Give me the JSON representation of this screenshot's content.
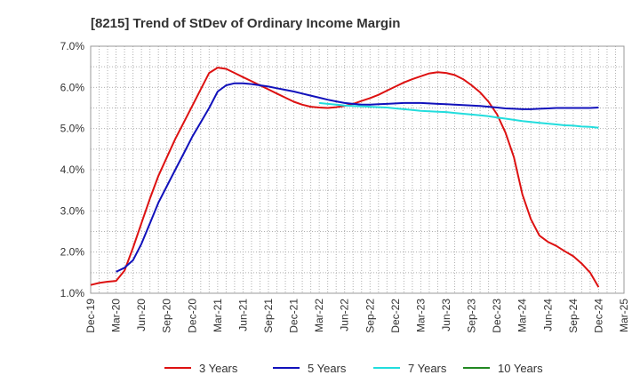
{
  "chart_data": {
    "type": "line",
    "title": "[8215]  Trend of StDev of Ordinary Income Margin",
    "xlabel": "",
    "ylabel": "",
    "x_ticks": [
      "Dec-19",
      "Mar-20",
      "Jun-20",
      "Sep-20",
      "Dec-20",
      "Mar-21",
      "Jun-21",
      "Sep-21",
      "Dec-21",
      "Mar-22",
      "Jun-22",
      "Sep-22",
      "Dec-22",
      "Mar-23",
      "Jun-23",
      "Sep-23",
      "Dec-23",
      "Mar-24",
      "Jun-24",
      "Sep-24",
      "Dec-24",
      "Mar-25"
    ],
    "y_ticks": [
      "1.0%",
      "2.0%",
      "3.0%",
      "4.0%",
      "5.0%",
      "6.0%",
      "7.0%"
    ],
    "ylim": [
      1.0,
      7.0
    ],
    "grid": true,
    "legend_position": "bottom",
    "series": [
      {
        "name": "3 Years",
        "color": "#dd1111",
        "x": [
          "Dec-19",
          "Jan-20",
          "Feb-20",
          "Mar-20",
          "Apr-20",
          "May-20",
          "Jun-20",
          "Jul-20",
          "Aug-20",
          "Sep-20",
          "Oct-20",
          "Nov-20",
          "Dec-20",
          "Jan-21",
          "Feb-21",
          "Mar-21",
          "Apr-21",
          "May-21",
          "Jun-21",
          "Jul-21",
          "Aug-21",
          "Sep-21",
          "Oct-21",
          "Nov-21",
          "Dec-21",
          "Jan-22",
          "Feb-22",
          "Mar-22",
          "Apr-22",
          "May-22",
          "Jun-22",
          "Jul-22",
          "Aug-22",
          "Sep-22",
          "Oct-22",
          "Nov-22",
          "Dec-22",
          "Jan-23",
          "Feb-23",
          "Mar-23",
          "Apr-23",
          "May-23",
          "Jun-23",
          "Jul-23",
          "Aug-23",
          "Sep-23",
          "Oct-23",
          "Nov-23",
          "Dec-23",
          "Jan-24",
          "Feb-24",
          "Mar-24",
          "Apr-24",
          "May-24",
          "Jun-24",
          "Jul-24",
          "Aug-24",
          "Sep-24",
          "Oct-24",
          "Nov-24",
          "Dec-24"
        ],
        "values": [
          1.2,
          1.25,
          1.28,
          1.3,
          1.55,
          2.1,
          2.7,
          3.3,
          3.85,
          4.3,
          4.75,
          5.15,
          5.55,
          5.95,
          6.35,
          6.48,
          6.45,
          6.35,
          6.25,
          6.15,
          6.05,
          5.95,
          5.85,
          5.75,
          5.65,
          5.58,
          5.53,
          5.51,
          5.5,
          5.52,
          5.55,
          5.6,
          5.67,
          5.74,
          5.82,
          5.92,
          6.02,
          6.12,
          6.2,
          6.27,
          6.34,
          6.37,
          6.35,
          6.3,
          6.2,
          6.05,
          5.88,
          5.65,
          5.35,
          4.9,
          4.3,
          3.4,
          2.8,
          2.4,
          2.25,
          2.15,
          2.02,
          1.9,
          1.72,
          1.5,
          1.15
        ]
      },
      {
        "name": "5 Years",
        "color": "#1111bb",
        "x": [
          "Mar-20",
          "Apr-20",
          "May-20",
          "Jun-20",
          "Jul-20",
          "Aug-20",
          "Sep-20",
          "Oct-20",
          "Nov-20",
          "Dec-20",
          "Jan-21",
          "Feb-21",
          "Mar-21",
          "Apr-21",
          "May-21",
          "Jun-21",
          "Jul-21",
          "Aug-21",
          "Sep-21",
          "Oct-21",
          "Nov-21",
          "Dec-21",
          "Jan-22",
          "Feb-22",
          "Mar-22",
          "Apr-22",
          "May-22",
          "Jun-22",
          "Jul-22",
          "Aug-22",
          "Sep-22",
          "Oct-22",
          "Nov-22",
          "Dec-22",
          "Jan-23",
          "Feb-23",
          "Mar-23",
          "Apr-23",
          "May-23",
          "Jun-23",
          "Jul-23",
          "Aug-23",
          "Sep-23",
          "Oct-23",
          "Nov-23",
          "Dec-23",
          "Jan-24",
          "Feb-24",
          "Mar-24",
          "Apr-24",
          "May-24",
          "Jun-24",
          "Jul-24",
          "Aug-24",
          "Sep-24",
          "Oct-24",
          "Nov-24",
          "Dec-24"
        ],
        "values": [
          1.52,
          1.62,
          1.8,
          2.2,
          2.7,
          3.2,
          3.6,
          4.0,
          4.4,
          4.8,
          5.15,
          5.5,
          5.9,
          6.05,
          6.1,
          6.1,
          6.08,
          6.05,
          6.02,
          5.98,
          5.94,
          5.9,
          5.85,
          5.8,
          5.75,
          5.7,
          5.66,
          5.62,
          5.6,
          5.58,
          5.58,
          5.59,
          5.6,
          5.61,
          5.62,
          5.62,
          5.62,
          5.61,
          5.6,
          5.59,
          5.58,
          5.57,
          5.56,
          5.55,
          5.53,
          5.51,
          5.49,
          5.48,
          5.47,
          5.47,
          5.48,
          5.49,
          5.5,
          5.5,
          5.5,
          5.5,
          5.5,
          5.51
        ]
      },
      {
        "name": "7 Years",
        "color": "#22dddd",
        "x": [
          "Mar-22",
          "Apr-22",
          "May-22",
          "Jun-22",
          "Jul-22",
          "Aug-22",
          "Sep-22",
          "Oct-22",
          "Nov-22",
          "Dec-22",
          "Jan-23",
          "Feb-23",
          "Mar-23",
          "Apr-23",
          "May-23",
          "Jun-23",
          "Jul-23",
          "Aug-23",
          "Sep-23",
          "Oct-23",
          "Nov-23",
          "Dec-23",
          "Jan-24",
          "Feb-24",
          "Mar-24",
          "Apr-24",
          "May-24",
          "Jun-24",
          "Jul-24",
          "Aug-24",
          "Sep-24",
          "Oct-24",
          "Nov-24",
          "Dec-24"
        ],
        "values": [
          5.62,
          5.6,
          5.58,
          5.56,
          5.55,
          5.54,
          5.53,
          5.52,
          5.51,
          5.49,
          5.47,
          5.45,
          5.43,
          5.42,
          5.41,
          5.4,
          5.38,
          5.36,
          5.34,
          5.32,
          5.3,
          5.27,
          5.24,
          5.21,
          5.18,
          5.16,
          5.14,
          5.12,
          5.1,
          5.08,
          5.07,
          5.05,
          5.04,
          5.02
        ]
      },
      {
        "name": "10 Years",
        "color": "#228822",
        "x": [],
        "values": []
      }
    ]
  }
}
